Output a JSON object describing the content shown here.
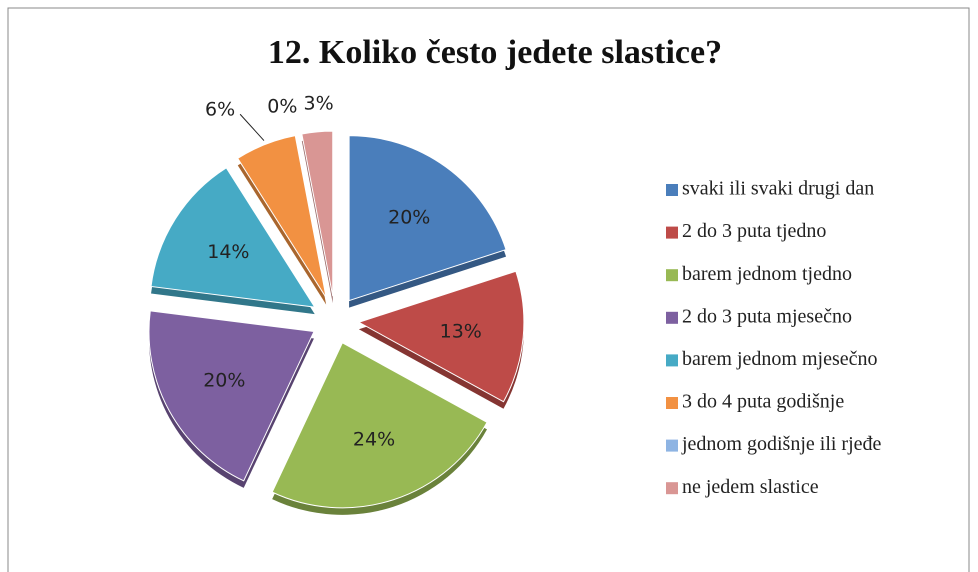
{
  "chart_data": {
    "type": "pie",
    "title": "12. Koliko često jedete slastice?",
    "categories": [
      "svaki ili svaki drugi dan",
      "2 do 3 puta tjedno",
      "barem jednom tjedno",
      "2 do 3 puta mjesečno",
      "barem jednom mjesečno",
      "3 do 4 puta godišnje",
      "jednom godišnje ili rjeđe",
      "ne jedem slastice"
    ],
    "values": [
      20,
      13,
      24,
      20,
      14,
      6,
      0,
      3
    ],
    "value_labels": [
      "20%",
      "13%",
      "24%",
      "20%",
      "14%",
      "6%",
      "0%",
      "3%"
    ],
    "colors": [
      "#4a7ebb",
      "#be4b48",
      "#98b954",
      "#7d60a0",
      "#46aac5",
      "#f29142",
      "#8eb4e3",
      "#d99694"
    ],
    "legend": "right"
  }
}
